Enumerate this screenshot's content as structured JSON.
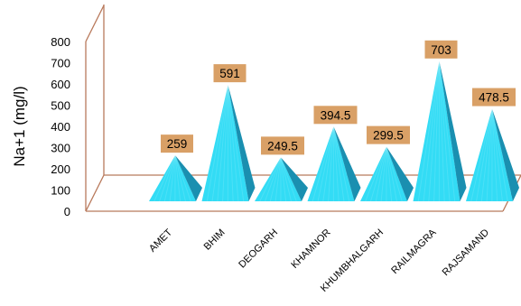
{
  "chart_data": {
    "type": "bar",
    "style": "3d-pyramid",
    "title": "",
    "xlabel": "",
    "ylabel": "Na+1 (mg/l)",
    "ylim": [
      0,
      800
    ],
    "yticks": [
      0,
      100,
      200,
      300,
      400,
      500,
      600,
      700,
      800
    ],
    "grid": false,
    "legend": "none",
    "categories": [
      "AMET",
      "BHIM",
      "DEOGARH",
      "KHAMNOR",
      "KHUMBHALGARH",
      "RAILMAGRA",
      "RAJSAMAND"
    ],
    "values": [
      259,
      591,
      249.5,
      394.5,
      299.5,
      703,
      478.5
    ],
    "data_labels": [
      "259",
      "591",
      "249.5",
      "394.5",
      "299.5",
      "703",
      "478.5"
    ],
    "colors": {
      "bar_light": "#33dcf5",
      "bar_dark": "#1a8fb0",
      "label_box": "#d9a066",
      "axis_lines": "#b87a5c"
    }
  }
}
